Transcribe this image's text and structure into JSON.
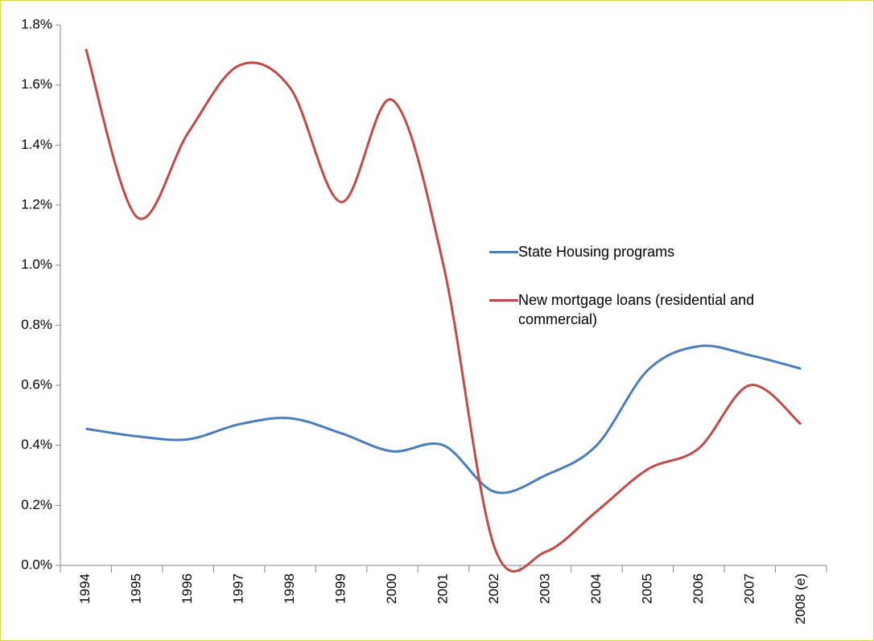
{
  "chart_data": {
    "type": "line",
    "categories": [
      "1994",
      "1995",
      "1996",
      "1997",
      "1998",
      "1999",
      "2000",
      "2001",
      "2002",
      "2003",
      "2004",
      "2005",
      "2006",
      "2007",
      "2008 (e)"
    ],
    "series": [
      {
        "name": "State Housing programs",
        "color": "#4a7ebb",
        "values": [
          0.455,
          0.43,
          0.42,
          0.47,
          0.49,
          0.44,
          0.38,
          0.4,
          0.245,
          0.3,
          0.4,
          0.65,
          0.73,
          0.7,
          0.655
        ]
      },
      {
        "name": "New mortgage loans (residential and commercial)",
        "color": "#be4b48",
        "values": [
          1.72,
          1.16,
          1.44,
          1.665,
          1.59,
          1.21,
          1.55,
          1.0,
          0.06,
          0.045,
          0.18,
          0.32,
          0.39,
          0.6,
          0.47
        ]
      }
    ],
    "ylim": [
      0,
      1.8
    ],
    "yticks": [
      {
        "value": 0,
        "label": "0.0%"
      },
      {
        "value": 0.2,
        "label": "0.2%"
      },
      {
        "value": 0.4,
        "label": "0.4%"
      },
      {
        "value": 0.6,
        "label": "0.6%"
      },
      {
        "value": 0.8,
        "label": "0.8%"
      },
      {
        "value": 1.0,
        "label": "1.0%"
      },
      {
        "value": 1.2,
        "label": "1.2%"
      },
      {
        "value": 1.4,
        "label": "1.4%"
      },
      {
        "value": 1.6,
        "label": "1.6%"
      },
      {
        "value": 1.8,
        "label": "1.8%"
      }
    ],
    "grid": false,
    "smooth": true,
    "legend": "right"
  }
}
